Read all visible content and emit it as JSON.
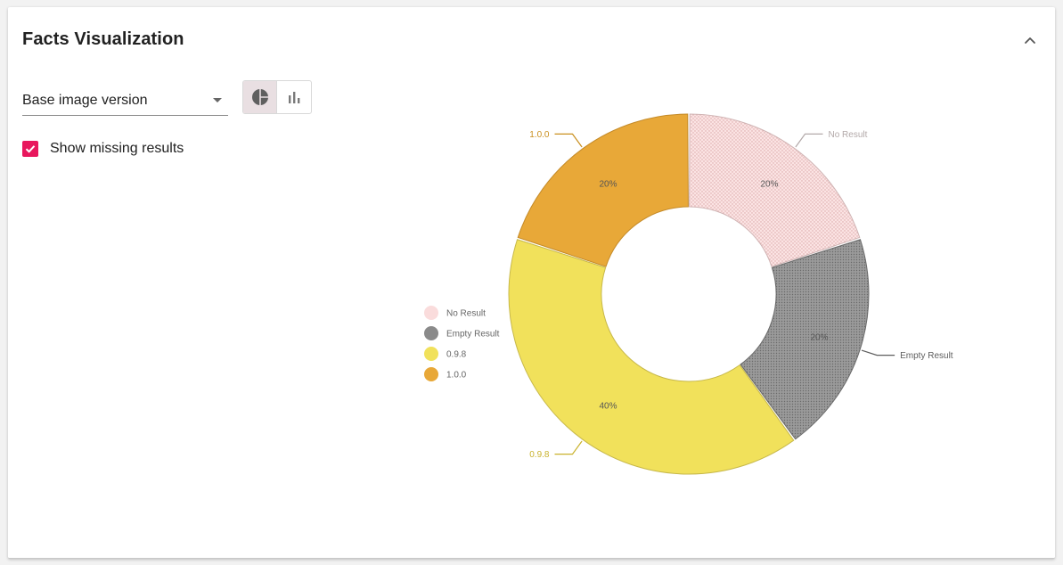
{
  "card": {
    "title": "Facts Visualization"
  },
  "controls": {
    "select_value": "Base image version",
    "show_missing_label": "Show missing results",
    "show_missing_checked": true,
    "view_mode": "pie"
  },
  "icons": {
    "collapse": "chevron-up-icon",
    "pie": "pie-chart-icon",
    "bar": "bar-chart-icon",
    "check": "check-icon"
  },
  "colors": {
    "accent": "#e8175d"
  },
  "chart_data": {
    "type": "pie",
    "donut": true,
    "legend_position": "left",
    "categories": [
      "No Result",
      "Empty Result",
      "0.9.8",
      "1.0.0"
    ],
    "values": [
      20,
      20,
      40,
      20
    ],
    "value_labels": [
      "20%",
      "20%",
      "40%",
      "20%"
    ],
    "colors": [
      "#fadcdc",
      "#8a8a8a",
      "#f1e15b",
      "#e8a838"
    ],
    "label_colors": [
      "#b3a9a9",
      "#5d5d5d",
      "#c9b22c",
      "#c98f1e"
    ],
    "patterned": [
      true,
      true,
      false,
      false
    ]
  }
}
